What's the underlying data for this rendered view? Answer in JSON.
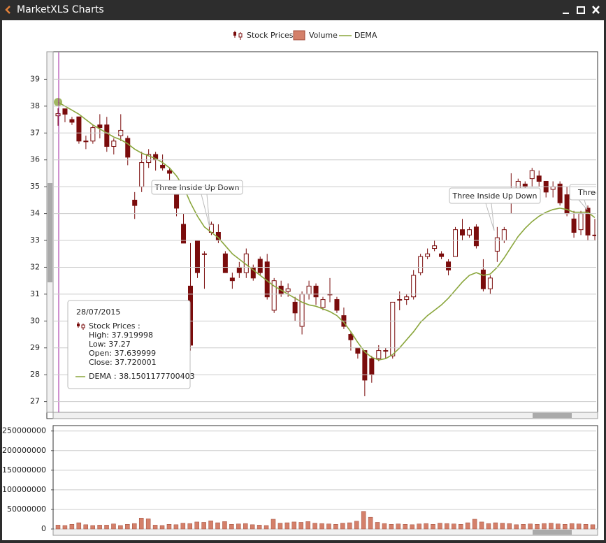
{
  "window": {
    "title": "MarketXLS Charts"
  },
  "tooltip": {
    "date": "28/07/2015",
    "series_label": "Stock Prices :",
    "lines": [
      "High: 37.919998",
      "Low: 37.27",
      "Open: 37.639999",
      "Close: 37.720001"
    ],
    "dema_label": "DEMA : 38.1501177700403"
  },
  "chart_data": [
    {
      "type": "candlestick",
      "ylim": [
        26.6,
        40
      ],
      "yticks": [
        27,
        28,
        29,
        30,
        31,
        32,
        33,
        34,
        35,
        36,
        37,
        38,
        39
      ],
      "grid": true,
      "annotations": [
        "Three Inside Up Down",
        "Three Inside Up Down",
        "Three"
      ],
      "series": [
        {
          "name": "Stock Prices",
          "color": "#7a0c0c",
          "open": [
            37.64,
            37.9,
            37.5,
            37.6,
            36.7,
            36.7,
            37.3,
            37.3,
            36.5,
            36.9,
            36.8,
            34.5,
            35.0,
            35.9,
            36.2,
            35.8,
            35.6,
            34.8,
            33.6,
            31.3,
            33.0,
            32.5,
            33.3,
            33.3,
            32.5,
            31.6,
            32.0,
            31.8,
            32.0,
            32.3,
            32.2,
            30.4,
            31.3,
            31.1,
            30.7,
            29.8,
            31.0,
            31.3,
            30.5,
            31.0,
            30.8,
            30.2,
            29.5,
            29.0,
            28.9,
            28.6,
            28.6,
            28.9,
            28.7,
            30.8,
            30.8,
            30.9,
            31.8,
            32.4,
            32.7,
            32.5,
            32.2,
            32.4,
            33.4,
            33.2,
            33.5,
            31.9,
            31.2,
            32.6,
            33.0,
            34.6,
            34.6,
            35.1,
            35.3,
            35.4,
            35.2,
            34.9,
            35.1,
            34.7,
            33.8,
            33.4,
            34.2,
            33.2
          ],
          "high": [
            37.92,
            37.9,
            37.6,
            37.6,
            36.9,
            37.3,
            37.7,
            37.6,
            36.8,
            37.7,
            36.9,
            34.8,
            36.3,
            36.4,
            36.3,
            36.2,
            35.7,
            34.9,
            34.0,
            32.9,
            33.0,
            32.6,
            33.7,
            33.6,
            32.6,
            31.8,
            32.2,
            32.7,
            32.1,
            32.4,
            32.5,
            31.6,
            31.5,
            31.4,
            30.9,
            31.1,
            31.5,
            31.4,
            30.9,
            31.6,
            30.9,
            30.5,
            29.6,
            29.0,
            28.9,
            28.7,
            29.1,
            29.0,
            30.7,
            31.1,
            31.0,
            31.9,
            32.5,
            32.7,
            33.0,
            32.6,
            32.3,
            33.5,
            33.8,
            33.5,
            33.6,
            32.3,
            31.7,
            33.5,
            33.5,
            35.5,
            35.3,
            35.2,
            35.7,
            35.6,
            35.2,
            35.2,
            35.2,
            35.0,
            34.1,
            34.1,
            34.3,
            33.8
          ],
          "low": [
            37.27,
            37.4,
            37.3,
            36.6,
            36.4,
            36.6,
            36.8,
            36.3,
            36.2,
            36.7,
            35.8,
            33.8,
            34.8,
            35.7,
            35.6,
            35.6,
            35.0,
            33.9,
            32.9,
            28.9,
            31.6,
            31.2,
            33.2,
            32.9,
            31.8,
            31.2,
            31.6,
            31.6,
            31.5,
            31.7,
            30.8,
            30.3,
            30.9,
            30.9,
            30.0,
            29.5,
            30.8,
            30.6,
            30.4,
            30.7,
            30.3,
            29.7,
            28.9,
            28.6,
            27.2,
            27.7,
            28.5,
            28.6,
            28.6,
            30.4,
            30.6,
            30.8,
            31.7,
            32.3,
            32.6,
            32.3,
            31.7,
            32.4,
            33.0,
            33.1,
            32.7,
            31.1,
            31.0,
            32.2,
            32.9,
            34.0,
            34.4,
            34.8,
            35.0,
            35.0,
            34.6,
            34.6,
            34.3,
            33.9,
            33.1,
            33.2,
            33.0,
            33.0
          ],
          "close": [
            37.72,
            37.7,
            37.4,
            36.7,
            36.7,
            37.2,
            37.2,
            36.5,
            36.7,
            37.1,
            36.1,
            34.3,
            35.9,
            36.2,
            36.0,
            35.7,
            35.5,
            34.2,
            32.9,
            29.1,
            31.8,
            32.5,
            33.6,
            33.0,
            31.8,
            31.5,
            31.8,
            32.5,
            31.6,
            31.8,
            30.9,
            31.5,
            31.0,
            31.2,
            30.3,
            31.0,
            31.3,
            30.9,
            30.8,
            31.0,
            30.4,
            29.8,
            29.3,
            28.8,
            27.8,
            28.0,
            28.9,
            28.9,
            30.7,
            30.8,
            30.9,
            31.7,
            32.4,
            32.5,
            32.8,
            32.4,
            31.9,
            33.4,
            33.2,
            33.4,
            32.8,
            31.2,
            31.6,
            33.1,
            33.4,
            34.8,
            35.2,
            35.0,
            35.6,
            35.2,
            34.8,
            35.0,
            34.4,
            34.0,
            33.3,
            34.0,
            33.2,
            33.2
          ]
        },
        {
          "name": "DEMA",
          "color": "#8aa63c",
          "values": [
            38.15,
            38.0,
            37.85,
            37.7,
            37.5,
            37.3,
            37.15,
            37.0,
            36.85,
            36.75,
            36.6,
            36.4,
            36.25,
            36.15,
            36.05,
            35.9,
            35.7,
            35.4,
            35.0,
            34.4,
            33.9,
            33.5,
            33.3,
            33.1,
            32.8,
            32.5,
            32.3,
            32.1,
            31.9,
            31.7,
            31.5,
            31.3,
            31.15,
            31.0,
            30.85,
            30.7,
            30.6,
            30.55,
            30.45,
            30.35,
            30.2,
            29.95,
            29.6,
            29.2,
            28.85,
            28.65,
            28.55,
            28.6,
            28.75,
            29.0,
            29.3,
            29.6,
            29.95,
            30.2,
            30.4,
            30.6,
            30.85,
            31.15,
            31.45,
            31.7,
            31.8,
            31.7,
            31.75,
            32.0,
            32.35,
            32.75,
            33.15,
            33.45,
            33.7,
            33.9,
            34.05,
            34.15,
            34.2,
            34.15,
            34.05,
            34.05,
            34.05,
            33.85
          ]
        }
      ]
    },
    {
      "type": "bar",
      "ylim": [
        0,
        262000000
      ],
      "yticks": [
        0,
        50000000,
        100000000,
        150000000,
        200000000,
        250000000
      ],
      "grid": true,
      "series": [
        {
          "name": "Volume",
          "color": "#d4806a",
          "values": [
            10000000,
            9000000,
            12000000,
            16000000,
            11000000,
            9000000,
            10000000,
            10000000,
            13000000,
            9000000,
            12000000,
            14000000,
            28000000,
            26000000,
            10000000,
            9000000,
            12000000,
            11000000,
            15000000,
            14000000,
            18000000,
            17000000,
            21000000,
            16000000,
            19000000,
            12000000,
            13000000,
            14000000,
            11000000,
            10000000,
            9000000,
            25000000,
            15000000,
            16000000,
            18000000,
            17000000,
            19000000,
            15000000,
            14000000,
            13000000,
            12000000,
            15000000,
            16000000,
            20000000,
            45000000,
            30000000,
            17000000,
            14000000,
            12000000,
            13000000,
            12000000,
            11000000,
            13000000,
            14000000,
            12000000,
            15000000,
            14000000,
            13000000,
            12000000,
            16000000,
            25000000,
            18000000,
            14000000,
            16000000,
            15000000,
            14000000,
            11000000,
            12000000,
            13000000,
            12000000,
            14000000,
            15000000,
            13000000,
            12000000,
            14000000,
            13000000,
            12000000,
            11000000
          ]
        }
      ]
    }
  ]
}
